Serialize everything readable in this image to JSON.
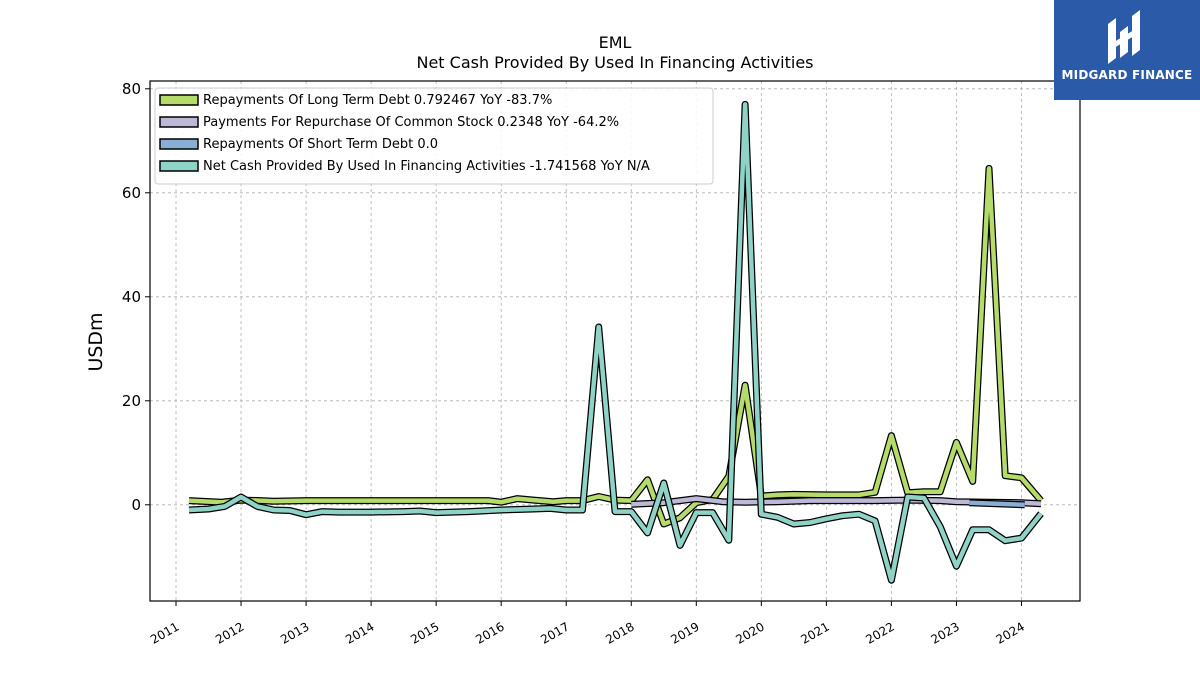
{
  "brand": {
    "name": "MIDGARD FINANCE",
    "color": "#2a5aa8"
  },
  "chart_data": {
    "type": "line",
    "title": "EML",
    "subtitle": "Net Cash Provided By Used In Financing Activities",
    "xlabel": "",
    "ylabel": "USDm",
    "xlim": [
      2010.6,
      2024.9
    ],
    "ylim": [
      -18.5,
      81.5
    ],
    "x_ticks": [
      "2011",
      "2012",
      "2013",
      "2014",
      "2015",
      "2016",
      "2017",
      "2018",
      "2019",
      "2020",
      "2021",
      "2022",
      "2023",
      "2024"
    ],
    "y_ticks": [
      0,
      20,
      40,
      60,
      80
    ],
    "grid": true,
    "legend_position": "top-left",
    "series": [
      {
        "name": "Repayments Of Long Term Debt  0.792467 YoY -83.7%",
        "color": "#b5dc6a",
        "x": [
          2011.2,
          2011.7,
          2012.0,
          2012.3,
          2012.5,
          2013.0,
          2015.0,
          2015.8,
          2016.0,
          2016.25,
          2016.5,
          2016.8,
          2017.0,
          2017.25,
          2017.5,
          2017.75,
          2018.0,
          2018.25,
          2018.5,
          2018.75,
          2019.0,
          2019.25,
          2019.5,
          2019.75,
          2020.0,
          2020.25,
          2020.5,
          2021.0,
          2021.5,
          2021.75,
          2022.0,
          2022.25,
          2022.5,
          2022.75,
          2023.0,
          2023.25,
          2023.5,
          2023.75,
          2024.0,
          2024.3
        ],
        "y": [
          0.8,
          0.5,
          0.9,
          0.8,
          0.7,
          0.8,
          0.8,
          0.8,
          0.5,
          1.2,
          0.9,
          0.6,
          0.8,
          0.8,
          1.6,
          0.9,
          0.8,
          4.8,
          -3.7,
          -2.5,
          0.4,
          1.0,
          5.5,
          23.0,
          1.7,
          1.9,
          2.0,
          1.9,
          1.9,
          2.4,
          13.3,
          2.3,
          2.5,
          2.5,
          12.0,
          4.5,
          64.7,
          5.6,
          5.2,
          0.8
        ]
      },
      {
        "name": "Payments For Repurchase Of Common Stock  0.2348 YoY -64.2%",
        "color": "#bcb8d6",
        "x": [
          2018.0,
          2018.5,
          2019.0,
          2019.4,
          2019.75,
          2020.25,
          2020.75,
          2021.25,
          2021.75,
          2022.25,
          2022.75,
          2023.0,
          2023.5,
          2024.0,
          2024.3
        ],
        "y": [
          0.1,
          0.4,
          1.2,
          0.6,
          0.5,
          0.6,
          0.8,
          0.8,
          0.8,
          0.9,
          0.8,
          0.6,
          0.5,
          0.4,
          0.2
        ]
      },
      {
        "name": "Repayments Of Short Term Debt  0.0",
        "color": "#8aaed3",
        "x": [
          2023.2,
          2024.05
        ],
        "y": [
          0.4,
          0.0
        ]
      },
      {
        "name": "Net Cash Provided By Used In Financing Activities  -1.741568 YoY N/A",
        "color": "#8fd3c7",
        "x": [
          2011.2,
          2011.5,
          2011.75,
          2012.0,
          2012.25,
          2012.5,
          2012.75,
          2013.0,
          2013.25,
          2013.5,
          2014.0,
          2014.5,
          2014.75,
          2015.0,
          2015.5,
          2016.0,
          2016.5,
          2016.75,
          2017.0,
          2017.25,
          2017.5,
          2017.75,
          2018.0,
          2018.25,
          2018.5,
          2018.75,
          2019.0,
          2019.25,
          2019.5,
          2019.75,
          2020.0,
          2020.25,
          2020.5,
          2020.75,
          2021.0,
          2021.25,
          2021.5,
          2021.75,
          2022.0,
          2022.25,
          2022.5,
          2022.75,
          2023.0,
          2023.25,
          2023.5,
          2023.75,
          2024.0,
          2024.3
        ],
        "y": [
          -1.0,
          -0.8,
          -0.3,
          1.5,
          -0.3,
          -1.0,
          -1.1,
          -1.9,
          -1.3,
          -1.4,
          -1.4,
          -1.3,
          -1.2,
          -1.5,
          -1.3,
          -1.0,
          -0.8,
          -0.7,
          -1.0,
          -1.0,
          34.2,
          -1.3,
          -1.3,
          -5.4,
          4.2,
          -7.8,
          -1.5,
          -1.5,
          -6.8,
          77.0,
          -1.8,
          -2.4,
          -3.7,
          -3.4,
          -2.7,
          -2.1,
          -1.8,
          -3.1,
          -14.5,
          1.5,
          1.3,
          -4.2,
          -11.8,
          -4.8,
          -4.8,
          -6.9,
          -6.4,
          -1.7
        ]
      }
    ]
  }
}
